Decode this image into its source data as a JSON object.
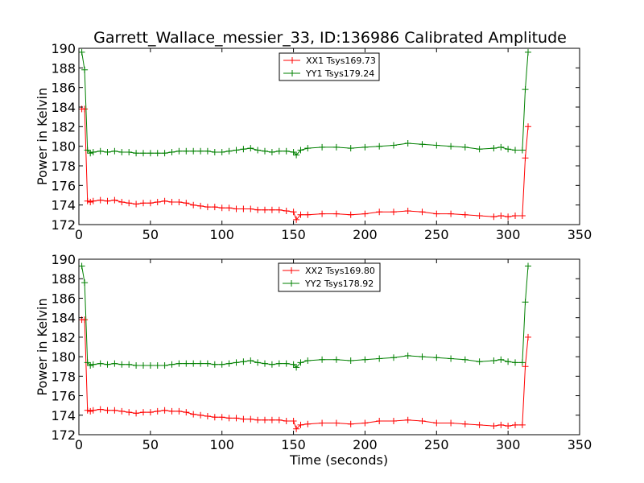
{
  "figure": {
    "title": "Garrett_Wallace_messier_33, ID:136986 Calibrated Amplitude"
  },
  "chart_data": [
    {
      "type": "line",
      "xlabel": "",
      "ylabel": "Power in Kelvin",
      "xlim": [
        0,
        350
      ],
      "ylim": [
        172,
        190
      ],
      "xticks": [
        "0",
        "50",
        "100",
        "150",
        "200",
        "250",
        "300",
        "350"
      ],
      "yticks": [
        "172",
        "174",
        "176",
        "178",
        "180",
        "182",
        "184",
        "186",
        "188",
        "190"
      ],
      "legend_position": "top-center",
      "grid": false,
      "series": [
        {
          "name": "XX1 Tsys169.73",
          "color": "#ff0000",
          "x": [
            2,
            4,
            6,
            8,
            10,
            15,
            20,
            25,
            30,
            35,
            40,
            45,
            50,
            55,
            60,
            65,
            70,
            75,
            80,
            85,
            90,
            95,
            100,
            105,
            110,
            115,
            120,
            125,
            130,
            135,
            140,
            145,
            150,
            152,
            155,
            160,
            170,
            180,
            190,
            200,
            210,
            220,
            230,
            240,
            250,
            260,
            270,
            280,
            290,
            295,
            300,
            305,
            310,
            312,
            314
          ],
          "y": [
            183.8,
            183.8,
            174.4,
            174.3,
            174.4,
            174.5,
            174.4,
            174.5,
            174.3,
            174.2,
            174.1,
            174.2,
            174.2,
            174.3,
            174.4,
            174.3,
            174.3,
            174.2,
            174.0,
            173.9,
            173.8,
            173.8,
            173.7,
            173.7,
            173.6,
            173.6,
            173.6,
            173.5,
            173.5,
            173.5,
            173.5,
            173.4,
            173.3,
            172.5,
            173.0,
            173.0,
            173.1,
            173.1,
            173.0,
            173.1,
            173.3,
            173.3,
            173.4,
            173.3,
            173.1,
            173.1,
            173.0,
            172.9,
            172.8,
            172.9,
            172.8,
            172.9,
            172.9,
            178.8,
            182.0
          ]
        },
        {
          "name": "YY1 Tsys179.24",
          "color": "#008000",
          "x": [
            2,
            4,
            6,
            8,
            10,
            15,
            20,
            25,
            30,
            35,
            40,
            45,
            50,
            55,
            60,
            65,
            70,
            75,
            80,
            85,
            90,
            95,
            100,
            105,
            110,
            115,
            120,
            125,
            130,
            135,
            140,
            145,
            150,
            152,
            155,
            160,
            170,
            180,
            190,
            200,
            210,
            220,
            230,
            240,
            250,
            260,
            270,
            280,
            290,
            295,
            300,
            305,
            310,
            312,
            314
          ],
          "y": [
            189.6,
            187.8,
            179.6,
            179.3,
            179.4,
            179.5,
            179.4,
            179.5,
            179.4,
            179.4,
            179.3,
            179.3,
            179.3,
            179.3,
            179.3,
            179.4,
            179.5,
            179.5,
            179.5,
            179.5,
            179.5,
            179.4,
            179.4,
            179.5,
            179.6,
            179.7,
            179.8,
            179.6,
            179.5,
            179.4,
            179.5,
            179.5,
            179.4,
            179.1,
            179.6,
            179.8,
            179.9,
            179.9,
            179.8,
            179.9,
            180.0,
            180.1,
            180.3,
            180.2,
            180.1,
            180.0,
            179.9,
            179.7,
            179.8,
            179.9,
            179.7,
            179.6,
            179.6,
            185.8,
            189.6
          ]
        }
      ]
    },
    {
      "type": "line",
      "xlabel": "Time (seconds)",
      "ylabel": "Power in Kelvin",
      "xlim": [
        0,
        350
      ],
      "ylim": [
        172,
        190
      ],
      "xticks": [
        "0",
        "50",
        "100",
        "150",
        "200",
        "250",
        "300",
        "350"
      ],
      "yticks": [
        "172",
        "174",
        "176",
        "178",
        "180",
        "182",
        "184",
        "186",
        "188",
        "190"
      ],
      "legend_position": "top-center",
      "grid": false,
      "series": [
        {
          "name": "XX2 Tsys169.80",
          "color": "#ff0000",
          "x": [
            2,
            4,
            6,
            8,
            10,
            15,
            20,
            25,
            30,
            35,
            40,
            45,
            50,
            55,
            60,
            65,
            70,
            75,
            80,
            85,
            90,
            95,
            100,
            105,
            110,
            115,
            120,
            125,
            130,
            135,
            140,
            145,
            150,
            152,
            155,
            160,
            170,
            180,
            190,
            200,
            210,
            220,
            230,
            240,
            250,
            260,
            270,
            280,
            290,
            295,
            300,
            305,
            310,
            312,
            314
          ],
          "y": [
            183.8,
            183.8,
            174.5,
            174.4,
            174.5,
            174.6,
            174.5,
            174.5,
            174.4,
            174.3,
            174.2,
            174.3,
            174.3,
            174.4,
            174.5,
            174.4,
            174.4,
            174.3,
            174.1,
            174.0,
            173.9,
            173.8,
            173.8,
            173.7,
            173.7,
            173.6,
            173.6,
            173.5,
            173.5,
            173.5,
            173.5,
            173.4,
            173.4,
            172.6,
            173.0,
            173.1,
            173.2,
            173.2,
            173.1,
            173.2,
            173.4,
            173.4,
            173.5,
            173.4,
            173.2,
            173.2,
            173.1,
            173.0,
            172.9,
            173.0,
            172.9,
            173.0,
            173.0,
            179.0,
            182.0
          ]
        },
        {
          "name": "YY2 Tsys178.92",
          "color": "#008000",
          "x": [
            2,
            4,
            6,
            8,
            10,
            15,
            20,
            25,
            30,
            35,
            40,
            45,
            50,
            55,
            60,
            65,
            70,
            75,
            80,
            85,
            90,
            95,
            100,
            105,
            110,
            115,
            120,
            125,
            130,
            135,
            140,
            145,
            150,
            152,
            155,
            160,
            170,
            180,
            190,
            200,
            210,
            220,
            230,
            240,
            250,
            260,
            270,
            280,
            290,
            295,
            300,
            305,
            310,
            312,
            314
          ],
          "y": [
            189.3,
            187.6,
            179.4,
            179.1,
            179.2,
            179.3,
            179.2,
            179.3,
            179.2,
            179.2,
            179.1,
            179.1,
            179.1,
            179.1,
            179.1,
            179.2,
            179.3,
            179.3,
            179.3,
            179.3,
            179.3,
            179.2,
            179.2,
            179.3,
            179.4,
            179.5,
            179.6,
            179.4,
            179.3,
            179.2,
            179.3,
            179.3,
            179.2,
            178.9,
            179.4,
            179.6,
            179.7,
            179.7,
            179.6,
            179.7,
            179.8,
            179.9,
            180.1,
            180.0,
            179.9,
            179.8,
            179.7,
            179.5,
            179.6,
            179.7,
            179.5,
            179.4,
            179.4,
            185.6,
            189.3
          ]
        }
      ]
    }
  ]
}
